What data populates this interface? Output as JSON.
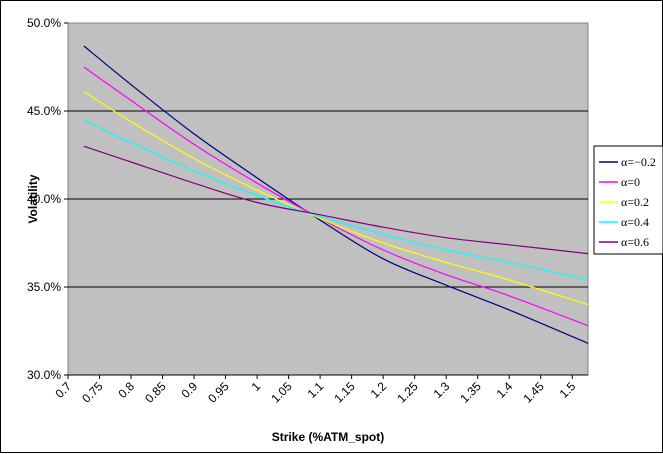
{
  "chart_data": {
    "type": "line",
    "title": "",
    "xlabel": "Strike (%ATM_spot)",
    "ylabel": "Volatility",
    "xlim": [
      0.7,
      1.525
    ],
    "ylim": [
      0.3,
      0.5
    ],
    "x_ticks": [
      "0.7",
      "0.75",
      "0.8",
      "0.85",
      "0.9",
      "0.95",
      "1",
      "1.05",
      "1.1",
      "1.15",
      "1.2",
      "1.25",
      "1.3",
      "1.35",
      "1.4",
      "1.45",
      "1.5"
    ],
    "y_ticks": [
      "30.0%",
      "35.0%",
      "40.0%",
      "45.0%",
      "50.0%"
    ],
    "y_tick_values": [
      0.3,
      0.35,
      0.4,
      0.45,
      0.5
    ],
    "grid": "horizontal",
    "legend_position": "right",
    "plot_background": "#c0c0c0",
    "x": [
      0.725,
      0.8,
      0.9,
      1.0,
      1.1,
      1.2,
      1.3,
      1.4,
      1.525
    ],
    "series": [
      {
        "name": "α=−0.2",
        "color": "#000080",
        "values": [
          0.487,
          0.465,
          0.437,
          0.412,
          0.388,
          0.366,
          0.351,
          0.337,
          0.318
        ]
      },
      {
        "name": "α=0",
        "color": "#ff00ff",
        "values": [
          0.475,
          0.456,
          0.431,
          0.409,
          0.389,
          0.371,
          0.357,
          0.345,
          0.328
        ]
      },
      {
        "name": "α=0.2",
        "color": "#ffff00",
        "values": [
          0.461,
          0.444,
          0.423,
          0.405,
          0.389,
          0.375,
          0.364,
          0.354,
          0.34
        ]
      },
      {
        "name": "α=0.4",
        "color": "#00ffff",
        "values": [
          0.445,
          0.432,
          0.416,
          0.402,
          0.39,
          0.38,
          0.371,
          0.364,
          0.354
        ]
      },
      {
        "name": "α=0.6",
        "color": "#800080",
        "values": [
          0.43,
          0.421,
          0.409,
          0.398,
          0.391,
          0.384,
          0.378,
          0.374,
          0.369
        ]
      }
    ]
  }
}
